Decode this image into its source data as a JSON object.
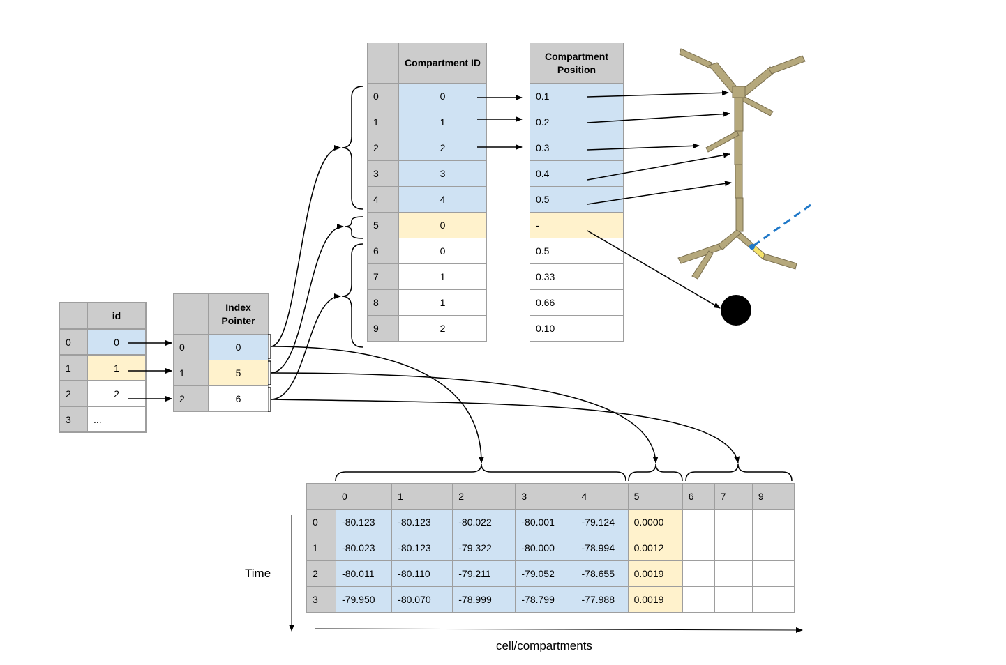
{
  "id_table": {
    "header": "id",
    "rows": [
      {
        "index": "0",
        "value": "0"
      },
      {
        "index": "1",
        "value": "1"
      },
      {
        "index": "2",
        "value": "2"
      },
      {
        "index": "3",
        "value": "..."
      }
    ]
  },
  "index_pointer_table": {
    "header": "Index Pointer",
    "rows": [
      {
        "index": "0",
        "value": "0"
      },
      {
        "index": "1",
        "value": "5"
      },
      {
        "index": "2",
        "value": "6"
      }
    ]
  },
  "compartment_table": {
    "header_id": "Compartment ID",
    "header_pos": "Compartment Position",
    "rows": [
      {
        "index": "0",
        "id": "0",
        "pos": "0.1"
      },
      {
        "index": "1",
        "id": "1",
        "pos": "0.2"
      },
      {
        "index": "2",
        "id": "2",
        "pos": "0.3"
      },
      {
        "index": "3",
        "id": "3",
        "pos": "0.4"
      },
      {
        "index": "4",
        "id": "4",
        "pos": "0.5"
      },
      {
        "index": "5",
        "id": "0",
        "pos": "-"
      },
      {
        "index": "6",
        "id": "0",
        "pos": "0.5"
      },
      {
        "index": "7",
        "id": "1",
        "pos": "0.33"
      },
      {
        "index": "8",
        "id": "1",
        "pos": "0.66"
      },
      {
        "index": "9",
        "id": "2",
        "pos": "0.10"
      }
    ]
  },
  "voltage_table": {
    "columns": [
      "0",
      "1",
      "2",
      "3",
      "4",
      "5",
      "6",
      "7",
      "9"
    ],
    "rows": [
      {
        "time": "0",
        "values": [
          "-80.123",
          "-80.123",
          "-80.022",
          "-80.001",
          "-79.124",
          "0.0000",
          "",
          "",
          ""
        ]
      },
      {
        "time": "1",
        "values": [
          "-80.023",
          "-80.123",
          "-79.322",
          "-80.000",
          "-78.994",
          "0.0012",
          "",
          "",
          ""
        ]
      },
      {
        "time": "2",
        "values": [
          "-80.011",
          "-80.110",
          "-79.211",
          "-79.052",
          "-78.655",
          "0.0019",
          "",
          "",
          ""
        ]
      },
      {
        "time": "3",
        "values": [
          "-79.950",
          "-80.070",
          "-78.999",
          "-78.799",
          "-77.988",
          "0.0019",
          "",
          "",
          ""
        ]
      }
    ]
  },
  "labels": {
    "time": "Time",
    "x_axis": "cell/compartments"
  },
  "colors": {
    "cell_0": "#cfe2f3",
    "cell_1": "#fff2cc",
    "header": "#cccccc",
    "neuron": "#b5a87c",
    "neuron_highlight": "#f4e26a",
    "electrode": "#1f78c8"
  }
}
